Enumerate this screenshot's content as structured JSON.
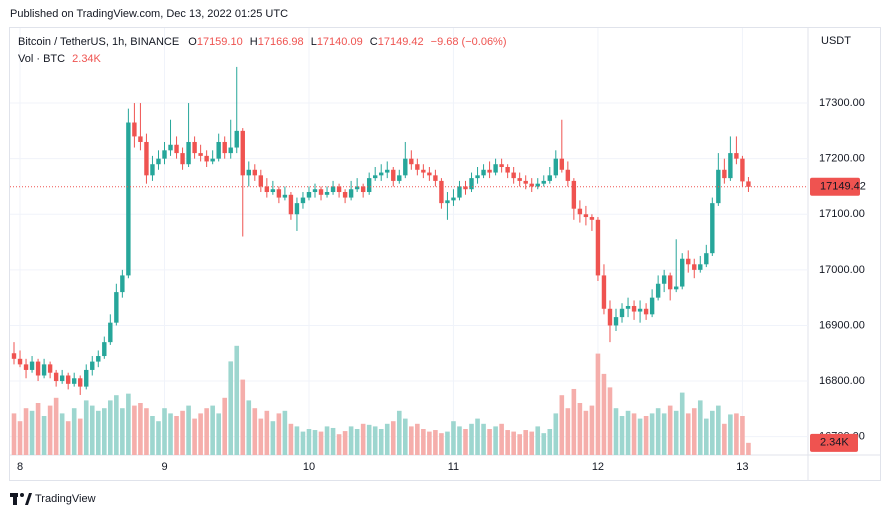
{
  "published": "Published on TradingView.com, Dec 13, 2022 01:25 UTC",
  "brand": "TradingView",
  "header": {
    "symbol": "Bitcoin / TetherUS, 1h, BINANCE",
    "o": "O",
    "open": "17159.10",
    "h": "H",
    "high": "17166.98",
    "l": "L",
    "low": "17140.09",
    "c": "C",
    "close": "17149.42",
    "change": "−9.68 (−0.06%)",
    "vol": "Vol · BTC",
    "vol_value": "2.34K"
  },
  "chart_data": {
    "type": "candlestick",
    "currency": "USDT",
    "up_color": "#26a69a",
    "down_color": "#ef5350",
    "up_volume_color": "#9dd6cf",
    "down_volume_color": "#f5aeab",
    "grid": true,
    "ylim": [
      16667,
      17435
    ],
    "yticks": [
      {
        "value": 16700,
        "label": "16700.00"
      },
      {
        "value": 16800,
        "label": "16800.00"
      },
      {
        "value": 16900,
        "label": "16900.00"
      },
      {
        "value": 17000,
        "label": "17000.00"
      },
      {
        "value": 17100,
        "label": "17100.00"
      },
      {
        "value": 17200,
        "label": "17200.00"
      },
      {
        "value": 17300,
        "label": "17300.00"
      }
    ],
    "volume_lim": [
      0,
      25000
    ],
    "categories": [
      null,
      "8",
      null,
      null,
      null,
      null,
      null,
      null,
      null,
      null,
      null,
      null,
      null,
      null,
      null,
      null,
      null,
      null,
      null,
      null,
      null,
      null,
      null,
      null,
      null,
      "9",
      null,
      null,
      null,
      null,
      null,
      null,
      null,
      null,
      null,
      null,
      null,
      null,
      null,
      null,
      null,
      null,
      null,
      null,
      null,
      null,
      null,
      null,
      null,
      "10",
      null,
      null,
      null,
      null,
      null,
      null,
      null,
      null,
      null,
      null,
      null,
      null,
      null,
      null,
      null,
      null,
      null,
      null,
      null,
      null,
      null,
      null,
      null,
      "11",
      null,
      null,
      null,
      null,
      null,
      null,
      null,
      null,
      null,
      null,
      null,
      null,
      null,
      null,
      null,
      null,
      null,
      null,
      null,
      null,
      null,
      null,
      null,
      "12",
      null,
      null,
      null,
      null,
      null,
      null,
      null,
      null,
      null,
      null,
      null,
      null,
      null,
      null,
      null,
      null,
      null,
      null,
      null,
      null,
      null,
      null,
      null,
      "13",
      null
    ],
    "candles": [
      [
        16850,
        16870,
        16830,
        16840
      ],
      [
        16840,
        16855,
        16825,
        16830
      ],
      [
        16830,
        16840,
        16805,
        16820
      ],
      [
        16820,
        16845,
        16815,
        16835
      ],
      [
        16835,
        16840,
        16800,
        16810
      ],
      [
        16810,
        16840,
        16805,
        16830
      ],
      [
        16830,
        16835,
        16805,
        16815
      ],
      [
        16815,
        16820,
        16790,
        16800
      ],
      [
        16800,
        16820,
        16795,
        16810
      ],
      [
        16810,
        16815,
        16785,
        16795
      ],
      [
        16795,
        16815,
        16790,
        16805
      ],
      [
        16805,
        16810,
        16775,
        16790
      ],
      [
        16790,
        16830,
        16785,
        16820
      ],
      [
        16820,
        16845,
        16810,
        16835
      ],
      [
        16835,
        16855,
        16825,
        16845
      ],
      [
        16845,
        16880,
        16840,
        16870
      ],
      [
        16870,
        16920,
        16865,
        16905
      ],
      [
        16905,
        16975,
        16900,
        16960
      ],
      [
        16960,
        17000,
        16950,
        16990
      ],
      [
        16990,
        17290,
        16985,
        17265
      ],
      [
        17265,
        17300,
        17220,
        17240
      ],
      [
        17240,
        17300,
        17215,
        17230
      ],
      [
        17230,
        17245,
        17155,
        17170
      ],
      [
        17170,
        17205,
        17160,
        17190
      ],
      [
        17190,
        17215,
        17180,
        17200
      ],
      [
        17200,
        17230,
        17190,
        17215
      ],
      [
        17215,
        17270,
        17205,
        17225
      ],
      [
        17225,
        17240,
        17200,
        17210
      ],
      [
        17210,
        17220,
        17180,
        17190
      ],
      [
        17190,
        17300,
        17185,
        17230
      ],
      [
        17230,
        17240,
        17200,
        17210
      ],
      [
        17210,
        17225,
        17195,
        17205
      ],
      [
        17205,
        17215,
        17185,
        17195
      ],
      [
        17195,
        17215,
        17190,
        17200
      ],
      [
        17200,
        17245,
        17195,
        17230
      ],
      [
        17230,
        17240,
        17200,
        17210
      ],
      [
        17210,
        17270,
        17200,
        17220
      ],
      [
        17220,
        17365,
        17210,
        17250
      ],
      [
        17250,
        17255,
        17060,
        17170
      ],
      [
        17170,
        17195,
        17150,
        17180
      ],
      [
        17180,
        17190,
        17160,
        17170
      ],
      [
        17170,
        17180,
        17140,
        17150
      ],
      [
        17150,
        17165,
        17130,
        17140
      ],
      [
        17140,
        17160,
        17135,
        17145
      ],
      [
        17145,
        17150,
        17120,
        17130
      ],
      [
        17130,
        17150,
        17125,
        17135
      ],
      [
        17135,
        17140,
        17090,
        17100
      ],
      [
        17100,
        17130,
        17070,
        17120
      ],
      [
        17120,
        17140,
        17110,
        17130
      ],
      [
        17130,
        17150,
        17125,
        17140
      ],
      [
        17140,
        17155,
        17130,
        17145
      ],
      [
        17145,
        17150,
        17125,
        17135
      ],
      [
        17135,
        17150,
        17130,
        17140
      ],
      [
        17140,
        17160,
        17135,
        17150
      ],
      [
        17150,
        17155,
        17130,
        17140
      ],
      [
        17140,
        17145,
        17120,
        17130
      ],
      [
        17130,
        17160,
        17125,
        17145
      ],
      [
        17145,
        17165,
        17140,
        17150
      ],
      [
        17150,
        17155,
        17130,
        17140
      ],
      [
        17140,
        17175,
        17135,
        17165
      ],
      [
        17165,
        17185,
        17160,
        17170
      ],
      [
        17170,
        17190,
        17160,
        17175
      ],
      [
        17175,
        17195,
        17165,
        17180
      ],
      [
        17180,
        17185,
        17150,
        17160
      ],
      [
        17160,
        17180,
        17155,
        17170
      ],
      [
        17170,
        17230,
        17165,
        17200
      ],
      [
        17200,
        17215,
        17180,
        17190
      ],
      [
        17190,
        17200,
        17170,
        17180
      ],
      [
        17180,
        17190,
        17165,
        17175
      ],
      [
        17175,
        17185,
        17160,
        17170
      ],
      [
        17170,
        17180,
        17150,
        17160
      ],
      [
        17160,
        17165,
        17110,
        17120
      ],
      [
        17120,
        17140,
        17090,
        17125
      ],
      [
        17125,
        17145,
        17115,
        17130
      ],
      [
        17130,
        17160,
        17125,
        17150
      ],
      [
        17150,
        17160,
        17135,
        17145
      ],
      [
        17145,
        17175,
        17140,
        17165
      ],
      [
        17165,
        17185,
        17155,
        17170
      ],
      [
        17170,
        17190,
        17165,
        17180
      ],
      [
        17180,
        17195,
        17165,
        17175
      ],
      [
        17175,
        17200,
        17170,
        17190
      ],
      [
        17190,
        17200,
        17175,
        17185
      ],
      [
        17185,
        17190,
        17165,
        17175
      ],
      [
        17175,
        17185,
        17155,
        17165
      ],
      [
        17165,
        17175,
        17150,
        17160
      ],
      [
        17160,
        17170,
        17145,
        17155
      ],
      [
        17155,
        17165,
        17140,
        17150
      ],
      [
        17150,
        17165,
        17145,
        17155
      ],
      [
        17155,
        17170,
        17150,
        17160
      ],
      [
        17160,
        17185,
        17155,
        17170
      ],
      [
        17170,
        17215,
        17165,
        17200
      ],
      [
        17200,
        17270,
        17175,
        17180
      ],
      [
        17180,
        17195,
        17150,
        17160
      ],
      [
        17160,
        17165,
        17090,
        17110
      ],
      [
        17110,
        17125,
        17085,
        17100
      ],
      [
        17100,
        17115,
        17080,
        17095
      ],
      [
        17095,
        17100,
        17070,
        17090
      ],
      [
        17090,
        17095,
        16980,
        16990
      ],
      [
        16990,
        17010,
        16920,
        16930
      ],
      [
        16930,
        16945,
        16870,
        16900
      ],
      [
        16900,
        16930,
        16890,
        16915
      ],
      [
        16915,
        16940,
        16905,
        16930
      ],
      [
        16930,
        16950,
        16915,
        16935
      ],
      [
        16935,
        16945,
        16910,
        16925
      ],
      [
        16925,
        16945,
        16905,
        16930
      ],
      [
        16930,
        16940,
        16910,
        16920
      ],
      [
        16920,
        16965,
        16915,
        16950
      ],
      [
        16950,
        16990,
        16945,
        16975
      ],
      [
        16975,
        17000,
        16960,
        16990
      ],
      [
        16990,
        16995,
        16945,
        16965
      ],
      [
        16965,
        17055,
        16960,
        16970
      ],
      [
        16970,
        17030,
        16965,
        17020
      ],
      [
        17020,
        17035,
        16995,
        17010
      ],
      [
        17010,
        17020,
        16985,
        17000
      ],
      [
        17000,
        17025,
        16995,
        17010
      ],
      [
        17010,
        17045,
        17005,
        17030
      ],
      [
        17030,
        17130,
        17025,
        17120
      ],
      [
        17120,
        17210,
        17115,
        17180
      ],
      [
        17180,
        17200,
        17155,
        17165
      ],
      [
        17165,
        17240,
        17160,
        17210
      ],
      [
        17210,
        17240,
        17190,
        17200
      ],
      [
        17200,
        17205,
        17150,
        17159.1
      ],
      [
        17159.1,
        17166.98,
        17140.09,
        17149.42
      ]
    ],
    "volume": [
      8000,
      6500,
      9000,
      8500,
      10000,
      7500,
      9500,
      11000,
      8000,
      6500,
      9000,
      7000,
      10500,
      9500,
      8500,
      9000,
      10500,
      11500,
      9000,
      11800,
      9500,
      10000,
      9000,
      7500,
      6500,
      9000,
      8000,
      7500,
      8500,
      9500,
      7000,
      8000,
      9000,
      9500,
      8000,
      11000,
      18000,
      21000,
      14500,
      10500,
      9000,
      7000,
      8500,
      6500,
      8000,
      8500,
      6000,
      5500,
      4500,
      5000,
      4800,
      4500,
      5500,
      5200,
      4000,
      4600,
      5500,
      5000,
      6000,
      5800,
      5500,
      5000,
      6000,
      6500,
      8500,
      7000,
      5500,
      6000,
      5000,
      4500,
      4800,
      4200,
      4500,
      6500,
      5500,
      5000,
      6000,
      7000,
      6000,
      5000,
      5500,
      6000,
      4800,
      4500,
      4000,
      4800,
      4500,
      5500,
      4200,
      5000,
      8000,
      11500,
      9000,
      12700,
      10000,
      8500,
      9500,
      19500,
      15600,
      13000,
      9000,
      7500,
      8500,
      8000,
      7000,
      7500,
      8000,
      9000,
      8000,
      9500,
      8500,
      12000,
      8000,
      9000,
      10500,
      7000,
      8500,
      9500,
      6000,
      7800,
      8000,
      7500,
      2340
    ]
  }
}
